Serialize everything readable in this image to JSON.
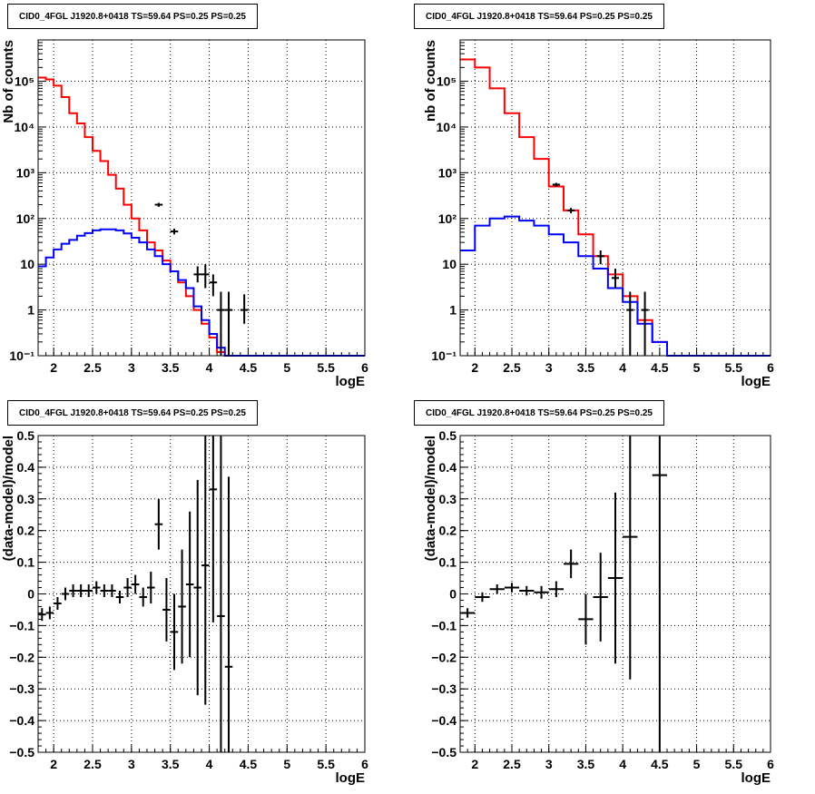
{
  "chart_data": [
    {
      "type": "line",
      "title": "CID0_4FGL J1920.8+0418 TS=59.64 PS=0.25 PS=0.25",
      "xlabel": "logE",
      "ylabel": "Nb of counts",
      "xlim": [
        1.8,
        6.0
      ],
      "ylim": [
        0.1,
        800000
      ],
      "yscale": "log",
      "grid": true,
      "xticks": [
        "2",
        "2.5",
        "3",
        "3.5",
        "4",
        "4.5",
        "5",
        "5.5",
        "6"
      ],
      "yticks": [
        "10⁻¹",
        "1",
        "10",
        "10²",
        "10³",
        "10⁴",
        "10⁵"
      ],
      "bin_edges": [
        1.8,
        1.9,
        2.0,
        2.1,
        2.2,
        2.3,
        2.4,
        2.5,
        2.6,
        2.7,
        2.8,
        2.9,
        3.0,
        3.1,
        3.2,
        3.3,
        3.4,
        3.5,
        3.6,
        3.7,
        3.8,
        3.9,
        4.0,
        4.1,
        4.2,
        4.3,
        4.4,
        4.5,
        4.6,
        4.7,
        4.8,
        4.9,
        5.0,
        5.1,
        5.2,
        5.3,
        5.4,
        5.5,
        5.6,
        5.7,
        5.8,
        5.9,
        6.0
      ],
      "series": [
        {
          "color": "#ff0000",
          "values": [
            120000,
            110000,
            80000,
            45000,
            20000,
            12000,
            6000,
            3000,
            1800,
            900,
            450,
            200,
            100,
            55,
            30,
            20,
            12,
            7,
            4,
            2,
            1,
            0.5,
            0.25,
            0.12,
            0.1,
            0.1,
            0.1,
            0.1,
            0.1,
            0.1,
            0.1,
            0.1,
            0.1,
            0.1,
            0.1,
            0.1,
            0.1,
            0.1,
            0.1,
            0.1,
            0.1,
            0.1
          ]
        },
        {
          "color": "#0000ff",
          "values": [
            9,
            14,
            21,
            28,
            34,
            42,
            48,
            55,
            58,
            58,
            55,
            47,
            38,
            30,
            21,
            15,
            10,
            7,
            4.5,
            3,
            1.2,
            0.6,
            0.3,
            0.15,
            0.1,
            0.1,
            0.1,
            0.1,
            0.1,
            0.1,
            0.1,
            0.1,
            0.1,
            0.1,
            0.1,
            0.1,
            0.1,
            0.1,
            0.1,
            0.1,
            0.1,
            0.1
          ]
        }
      ],
      "points": [
        {
          "x": 3.35,
          "y": 200,
          "ylo": 180,
          "yhi": 220
        },
        {
          "x": 3.55,
          "y": 52,
          "ylo": 45,
          "yhi": 60
        },
        {
          "x": 3.85,
          "y": 6,
          "ylo": 4,
          "yhi": 9
        },
        {
          "x": 3.95,
          "y": 6,
          "ylo": 3,
          "yhi": 10
        },
        {
          "x": 4.05,
          "y": 4,
          "ylo": 2,
          "yhi": 6
        },
        {
          "x": 4.15,
          "y": 1,
          "ylo": 0.1,
          "yhi": 2.5
        },
        {
          "x": 4.25,
          "y": 1,
          "ylo": 0.1,
          "yhi": 2.5
        },
        {
          "x": 4.45,
          "y": 1,
          "ylo": 0.5,
          "yhi": 2.2
        }
      ]
    },
    {
      "type": "line",
      "title": "CID0_4FGL J1920.8+0418 TS=59.64 PS=0.25 PS=0.25",
      "xlabel": "logE",
      "ylabel": "nb of counts",
      "xlim": [
        1.8,
        6.0
      ],
      "ylim": [
        0.1,
        800000
      ],
      "yscale": "log",
      "grid": true,
      "xticks": [
        "2",
        "2.5",
        "3",
        "3.5",
        "4",
        "4.5",
        "5",
        "5.5",
        "6"
      ],
      "yticks": [
        "10⁻¹",
        "1",
        "10",
        "10²",
        "10³",
        "10⁴",
        "10⁵"
      ],
      "bin_edges": [
        1.8,
        2.0,
        2.2,
        2.4,
        2.6,
        2.8,
        3.0,
        3.2,
        3.4,
        3.6,
        3.8,
        4.0,
        4.2,
        4.4,
        4.6,
        4.8,
        5.0,
        5.2,
        5.4,
        5.6,
        5.8,
        6.0
      ],
      "series": [
        {
          "color": "#ff0000",
          "values": [
            300000,
            200000,
            70000,
            20000,
            6000,
            2000,
            500,
            150,
            45,
            15,
            6,
            2,
            0.6,
            0.2,
            0.1,
            0.1,
            0.1,
            0.1,
            0.1,
            0.1,
            0.1
          ]
        },
        {
          "color": "#0000ff",
          "values": [
            20,
            70,
            100,
            110,
            90,
            70,
            45,
            30,
            15,
            8,
            3,
            1.5,
            0.5,
            0.2,
            0.1,
            0.1,
            0.1,
            0.1,
            0.1,
            0.1,
            0.1
          ]
        }
      ],
      "points": [
        {
          "x": 3.1,
          "y": 550,
          "ylo": 500,
          "yhi": 600
        },
        {
          "x": 3.3,
          "y": 150,
          "ylo": 130,
          "yhi": 170
        },
        {
          "x": 3.7,
          "y": 15,
          "ylo": 10,
          "yhi": 20
        },
        {
          "x": 3.9,
          "y": 5,
          "ylo": 3,
          "yhi": 8
        },
        {
          "x": 4.1,
          "y": 1,
          "ylo": 0.1,
          "yhi": 2.5
        },
        {
          "x": 4.3,
          "y": 1,
          "ylo": 0.1,
          "yhi": 2.5
        }
      ]
    },
    {
      "type": "scatter",
      "title": "CID0_4FGL J1920.8+0418 TS=59.64 PS=0.25 PS=0.25",
      "xlabel": "logE",
      "ylabel": "(data-model)/model",
      "xlim": [
        1.8,
        6.0
      ],
      "ylim": [
        -0.5,
        0.5
      ],
      "grid": true,
      "xticks": [
        "2",
        "2.5",
        "3",
        "3.5",
        "4",
        "4.5",
        "5",
        "5.5",
        "6"
      ],
      "yticks": [
        "−0.5",
        "−0.4",
        "−0.3",
        "−0.2",
        "−0.1",
        "0",
        "0.1",
        "0.2",
        "0.3",
        "0.4",
        "0.5"
      ],
      "xerr": 0.05,
      "points": [
        {
          "x": 1.85,
          "y": -0.065,
          "err": 0.02
        },
        {
          "x": 1.95,
          "y": -0.06,
          "err": 0.02
        },
        {
          "x": 2.05,
          "y": -0.03,
          "err": 0.02
        },
        {
          "x": 2.15,
          "y": 0.0,
          "err": 0.02
        },
        {
          "x": 2.25,
          "y": 0.01,
          "err": 0.02
        },
        {
          "x": 2.35,
          "y": 0.01,
          "err": 0.02
        },
        {
          "x": 2.45,
          "y": 0.01,
          "err": 0.02
        },
        {
          "x": 2.55,
          "y": 0.02,
          "err": 0.02
        },
        {
          "x": 2.65,
          "y": 0.01,
          "err": 0.02
        },
        {
          "x": 2.75,
          "y": 0.01,
          "err": 0.02
        },
        {
          "x": 2.85,
          "y": -0.01,
          "err": 0.02
        },
        {
          "x": 2.95,
          "y": 0.02,
          "err": 0.03
        },
        {
          "x": 3.05,
          "y": 0.03,
          "err": 0.03
        },
        {
          "x": 3.15,
          "y": -0.01,
          "err": 0.03
        },
        {
          "x": 3.25,
          "y": 0.02,
          "err": 0.05
        },
        {
          "x": 3.35,
          "y": 0.22,
          "err": 0.08
        },
        {
          "x": 3.45,
          "y": -0.05,
          "err": 0.1
        },
        {
          "x": 3.55,
          "y": -0.12,
          "err": 0.12
        },
        {
          "x": 3.65,
          "y": -0.04,
          "err": 0.18
        },
        {
          "x": 3.75,
          "y": 0.03,
          "err": 0.23
        },
        {
          "x": 3.85,
          "y": 0.02,
          "err": 0.34
        },
        {
          "x": 3.95,
          "y": 0.09,
          "err": 0.44
        },
        {
          "x": 4.05,
          "y": 0.33,
          "err": 0.42
        },
        {
          "x": 4.15,
          "y": -0.07,
          "err": 0.6
        },
        {
          "x": 4.25,
          "y": -0.23,
          "err": 0.6
        }
      ]
    },
    {
      "type": "scatter",
      "title": "CID0_4FGL J1920.8+0418 TS=59.64 PS=0.25 PS=0.25",
      "xlabel": "logE",
      "ylabel": "(data-model)/model",
      "xlim": [
        1.8,
        6.0
      ],
      "ylim": [
        -0.5,
        0.5
      ],
      "grid": true,
      "xticks": [
        "2",
        "2.5",
        "3",
        "3.5",
        "4",
        "4.5",
        "5",
        "5.5",
        "6"
      ],
      "yticks": [
        "−0.5",
        "−0.4",
        "−0.3",
        "−0.2",
        "−0.1",
        "0",
        "0.1",
        "0.2",
        "0.3",
        "0.4",
        "0.5"
      ],
      "xerr": 0.1,
      "points": [
        {
          "x": 1.9,
          "y": -0.06,
          "err": 0.015
        },
        {
          "x": 2.1,
          "y": -0.01,
          "err": 0.015
        },
        {
          "x": 2.3,
          "y": 0.015,
          "err": 0.015
        },
        {
          "x": 2.5,
          "y": 0.02,
          "err": 0.015
        },
        {
          "x": 2.7,
          "y": 0.01,
          "err": 0.015
        },
        {
          "x": 2.9,
          "y": 0.005,
          "err": 0.02
        },
        {
          "x": 3.1,
          "y": 0.015,
          "err": 0.025
        },
        {
          "x": 3.3,
          "y": 0.095,
          "err": 0.045
        },
        {
          "x": 3.5,
          "y": -0.08,
          "err": 0.08
        },
        {
          "x": 3.7,
          "y": -0.01,
          "err": 0.14
        },
        {
          "x": 3.9,
          "y": 0.05,
          "err": 0.27
        },
        {
          "x": 4.1,
          "y": 0.18,
          "err": 0.45
        },
        {
          "x": 4.5,
          "y": 0.375,
          "err": 0.9
        }
      ]
    }
  ]
}
